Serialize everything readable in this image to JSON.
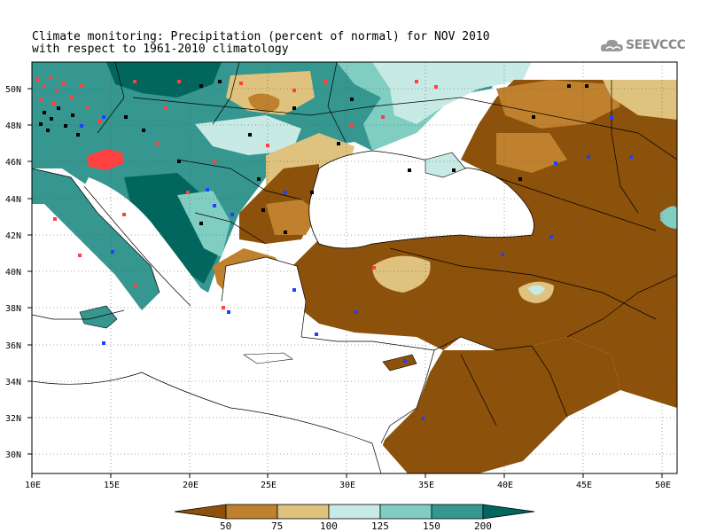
{
  "title": {
    "line1": "Climate monitoring: Precipitation (percent of normal) for NOV 2010",
    "line2": "with respect to 1961-2010 climatology"
  },
  "logo": {
    "text": "SEEVCCC",
    "icon": "cloud-icon"
  },
  "map": {
    "lon_range": [
      10,
      51
    ],
    "lat_range": [
      29,
      51.5
    ],
    "x_tick_labels": [
      "10E",
      "15E",
      "20E",
      "25E",
      "30E",
      "35E",
      "40E",
      "45E",
      "50E"
    ],
    "y_tick_labels": [
      "30N",
      "32N",
      "34N",
      "36N",
      "38N",
      "40N",
      "42N",
      "44N",
      "46N",
      "48N",
      "50N"
    ],
    "gridlines": "dotted",
    "station_colors": {
      "wet_station": "#ff4040",
      "dry_station": "#000000",
      "blue_station": "#2040ff"
    }
  },
  "colorbar": {
    "labels": [
      "50",
      "75",
      "100",
      "125",
      "150",
      "200"
    ],
    "colors": [
      "#8c510a",
      "#bf812d",
      "#dfc27d",
      "#c7eae5",
      "#80cdc1",
      "#35978f",
      "#01665e"
    ]
  },
  "colors": {
    "very_dry": "#8c510a",
    "dry": "#bf812d",
    "slightly_dry": "#dfc27d",
    "slightly_wet": "#c7eae5",
    "wet": "#80cdc1",
    "very_wet": "#35978f",
    "extreme_wet": "#01665e",
    "sea": "#ffffff"
  }
}
